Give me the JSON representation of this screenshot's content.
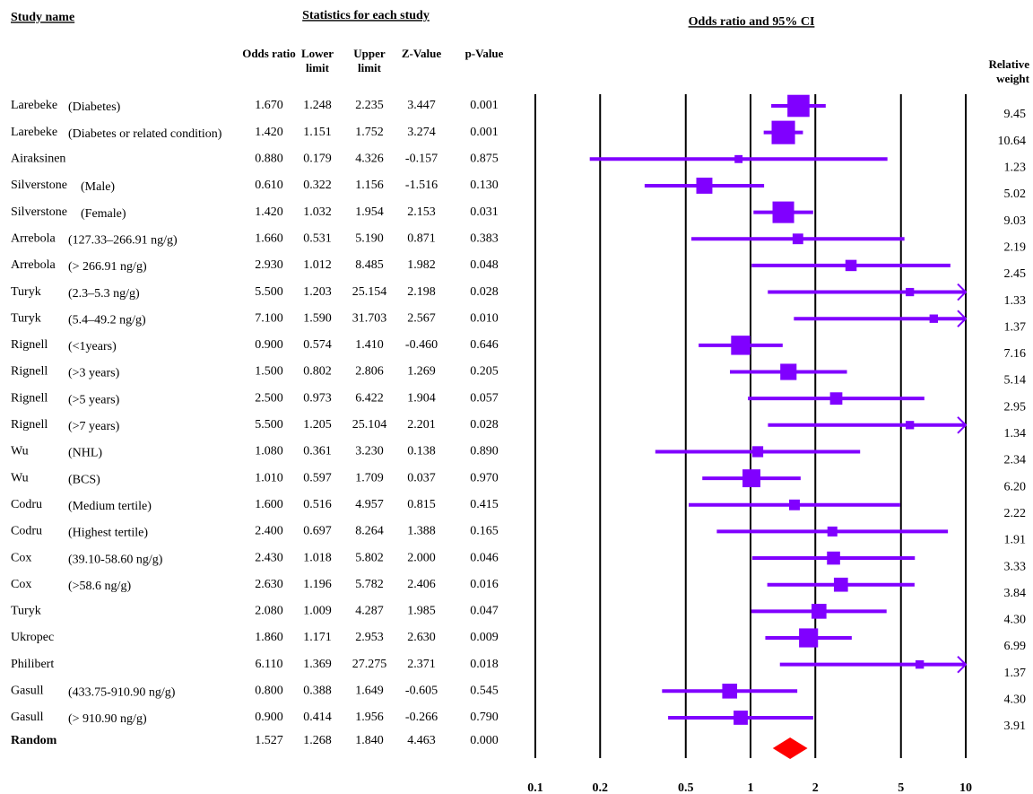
{
  "chart_data": {
    "type": "forest",
    "study_header": "Study name",
    "stats_header": "Statistics for each study",
    "title": "Odds ratio and 95% CI",
    "column_labels": [
      "Odds ratio",
      "Lower limit",
      "Upper limit",
      "Z-Value",
      "p-Value"
    ],
    "weight_header": "Relative weight",
    "xscale": "log",
    "xlim": [
      0.1,
      10
    ],
    "xticks": [
      0.1,
      0.2,
      0.5,
      1,
      2,
      5,
      10
    ],
    "color": "#8000ff",
    "summary_color": "#ff0000",
    "studies": [
      {
        "name": "Larebeke",
        "subgroup": "(Diabetes)",
        "odds_ratio": 1.67,
        "odds_ratio_label": "1.670",
        "lower": 1.248,
        "lower_label": "1.248",
        "upper": 2.235,
        "upper_label": "2.235",
        "z_value": "3.447",
        "p_value": "0.001",
        "weight": 9.45,
        "weight_label": "9.45"
      },
      {
        "name": "Larebeke",
        "subgroup": "(Diabetes or related condition)",
        "odds_ratio": 1.42,
        "odds_ratio_label": "1.420",
        "lower": 1.151,
        "lower_label": "1.151",
        "upper": 1.752,
        "upper_label": "1.752",
        "z_value": "3.274",
        "p_value": "0.001",
        "weight": 10.64,
        "weight_label": "10.64"
      },
      {
        "name": "Airaksinen",
        "odds_ratio": 0.88,
        "odds_ratio_label": "0.880",
        "lower": 0.179,
        "lower_label": "0.179",
        "upper": 4.326,
        "upper_label": "4.326",
        "z_value": "-0.157",
        "p_value": "0.875",
        "weight": 1.23,
        "weight_label": "1.23"
      },
      {
        "name": "Silverstone",
        "subgroup": "(Male)",
        "odds_ratio": 0.61,
        "odds_ratio_label": "0.610",
        "lower": 0.322,
        "lower_label": "0.322",
        "upper": 1.156,
        "upper_label": "1.156",
        "z_value": "-1.516",
        "p_value": "0.130",
        "weight": 5.02,
        "weight_label": "5.02"
      },
      {
        "name": "Silverstone",
        "subgroup": "(Female)",
        "odds_ratio": 1.42,
        "odds_ratio_label": "1.420",
        "lower": 1.032,
        "lower_label": "1.032",
        "upper": 1.954,
        "upper_label": "1.954",
        "z_value": "2.153",
        "p_value": "0.031",
        "weight": 9.03,
        "weight_label": "9.03"
      },
      {
        "name": "Arrebola",
        "subgroup": "(127.33–266.91 ng/g)",
        "odds_ratio": 1.66,
        "odds_ratio_label": "1.660",
        "lower": 0.531,
        "lower_label": "0.531",
        "upper": 5.19,
        "upper_label": "5.190",
        "z_value": "0.871",
        "p_value": "0.383",
        "weight": 2.19,
        "weight_label": "2.19"
      },
      {
        "name": "Arrebola",
        "subgroup": "(> 266.91 ng/g)",
        "odds_ratio": 2.93,
        "odds_ratio_label": "2.930",
        "lower": 1.012,
        "lower_label": "1.012",
        "upper": 8.485,
        "upper_label": "8.485",
        "z_value": "1.982",
        "p_value": "0.048",
        "weight": 2.45,
        "weight_label": "2.45"
      },
      {
        "name": "Turyk",
        "subgroup": "(2.3–5.3 ng/g)",
        "odds_ratio": 5.5,
        "odds_ratio_label": "5.500",
        "lower": 1.203,
        "lower_label": "1.203",
        "upper": 25.154,
        "upper_label": "25.154",
        "z_value": "2.198",
        "p_value": "0.028",
        "weight": 1.33,
        "weight_label": "1.33"
      },
      {
        "name": "Turyk",
        "subgroup": "(5.4–49.2 ng/g)",
        "odds_ratio": 7.1,
        "odds_ratio_label": "7.100",
        "lower": 1.59,
        "lower_label": "1.590",
        "upper": 31.703,
        "upper_label": "31.703",
        "z_value": "2.567",
        "p_value": "0.010",
        "weight": 1.37,
        "weight_label": "1.37"
      },
      {
        "name": "Rignell",
        "subgroup": "(<1years)",
        "odds_ratio": 0.9,
        "odds_ratio_label": "0.900",
        "lower": 0.574,
        "lower_label": "0.574",
        "upper": 1.41,
        "upper_label": "1.410",
        "z_value": "-0.460",
        "p_value": "0.646",
        "weight": 7.16,
        "weight_label": "7.16"
      },
      {
        "name": "Rignell",
        "subgroup": "(>3 years)",
        "odds_ratio": 1.5,
        "odds_ratio_label": "1.500",
        "lower": 0.802,
        "lower_label": "0.802",
        "upper": 2.806,
        "upper_label": "2.806",
        "z_value": "1.269",
        "p_value": "0.205",
        "weight": 5.14,
        "weight_label": "5.14"
      },
      {
        "name": "Rignell",
        "subgroup": "(>5 years)",
        "odds_ratio": 2.5,
        "odds_ratio_label": "2.500",
        "lower": 0.973,
        "lower_label": "0.973",
        "upper": 6.422,
        "upper_label": "6.422",
        "z_value": "1.904",
        "p_value": "0.057",
        "weight": 2.95,
        "weight_label": "2.95"
      },
      {
        "name": "Rignell",
        "subgroup": "(>7 years)",
        "odds_ratio": 5.5,
        "odds_ratio_label": "5.500",
        "lower": 1.205,
        "lower_label": "1.205",
        "upper": 25.104,
        "upper_label": "25.104",
        "z_value": "2.201",
        "p_value": "0.028",
        "weight": 1.34,
        "weight_label": "1.34"
      },
      {
        "name": "Wu",
        "subgroup": "(NHL)",
        "odds_ratio": 1.08,
        "odds_ratio_label": "1.080",
        "lower": 0.361,
        "lower_label": "0.361",
        "upper": 3.23,
        "upper_label": "3.230",
        "z_value": "0.138",
        "p_value": "0.890",
        "weight": 2.34,
        "weight_label": "2.34"
      },
      {
        "name": "Wu",
        "subgroup": "(BCS)",
        "odds_ratio": 1.01,
        "odds_ratio_label": "1.010",
        "lower": 0.597,
        "lower_label": "0.597",
        "upper": 1.709,
        "upper_label": "1.709",
        "z_value": "0.037",
        "p_value": "0.970",
        "weight": 6.2,
        "weight_label": "6.20"
      },
      {
        "name": "Codru",
        "subgroup": "(Medium tertile)",
        "odds_ratio": 1.6,
        "odds_ratio_label": "1.600",
        "lower": 0.516,
        "lower_label": "0.516",
        "upper": 4.957,
        "upper_label": "4.957",
        "z_value": "0.815",
        "p_value": "0.415",
        "weight": 2.22,
        "weight_label": "2.22"
      },
      {
        "name": "Codru",
        "subgroup": "(Highest tertile)",
        "odds_ratio": 2.4,
        "odds_ratio_label": "2.400",
        "lower": 0.697,
        "lower_label": "0.697",
        "upper": 8.264,
        "upper_label": "8.264",
        "z_value": "1.388",
        "p_value": "0.165",
        "weight": 1.91,
        "weight_label": "1.91"
      },
      {
        "name": "Cox",
        "subgroup": "(39.10-58.60 ng/g)",
        "odds_ratio": 2.43,
        "odds_ratio_label": "2.430",
        "lower": 1.018,
        "lower_label": "1.018",
        "upper": 5.802,
        "upper_label": "5.802",
        "z_value": "2.000",
        "p_value": "0.046",
        "weight": 3.33,
        "weight_label": "3.33"
      },
      {
        "name": "Cox",
        "subgroup": "(>58.6 ng/g)",
        "odds_ratio": 2.63,
        "odds_ratio_label": "2.630",
        "lower": 1.196,
        "lower_label": "1.196",
        "upper": 5.782,
        "upper_label": "5.782",
        "z_value": "2.406",
        "p_value": "0.016",
        "weight": 3.84,
        "weight_label": "3.84"
      },
      {
        "name": "Turyk",
        "odds_ratio": 2.08,
        "odds_ratio_label": "2.080",
        "lower": 1.009,
        "lower_label": "1.009",
        "upper": 4.287,
        "upper_label": "4.287",
        "z_value": "1.985",
        "p_value": "0.047",
        "weight": 4.3,
        "weight_label": "4.30"
      },
      {
        "name": "Ukropec",
        "odds_ratio": 1.86,
        "odds_ratio_label": "1.860",
        "lower": 1.171,
        "lower_label": "1.171",
        "upper": 2.953,
        "upper_label": "2.953",
        "z_value": "2.630",
        "p_value": "0.009",
        "weight": 6.99,
        "weight_label": "6.99"
      },
      {
        "name": "Philibert",
        "odds_ratio": 6.11,
        "odds_ratio_label": "6.110",
        "lower": 1.369,
        "lower_label": "1.369",
        "upper": 27.275,
        "upper_label": "27.275",
        "z_value": "2.371",
        "p_value": "0.018",
        "weight": 1.37,
        "weight_label": "1.37"
      },
      {
        "name": "Gasull",
        "subgroup": "(433.75-910.90 ng/g)",
        "odds_ratio": 0.8,
        "odds_ratio_label": "0.800",
        "lower": 0.388,
        "lower_label": "0.388",
        "upper": 1.649,
        "upper_label": "1.649",
        "z_value": "-0.605",
        "p_value": "0.545",
        "weight": 4.3,
        "weight_label": "4.30"
      },
      {
        "name": "Gasull",
        "subgroup": "(> 910.90 ng/g)",
        "odds_ratio": 0.9,
        "odds_ratio_label": "0.900",
        "lower": 0.414,
        "lower_label": "0.414",
        "upper": 1.956,
        "upper_label": "1.956",
        "z_value": "-0.266",
        "p_value": "0.790",
        "weight": 3.91,
        "weight_label": "3.91"
      }
    ],
    "summary": {
      "name": "Random",
      "odds_ratio": 1.527,
      "odds_ratio_label": "1.527",
      "lower": 1.268,
      "lower_label": "1.268",
      "upper": 1.84,
      "upper_label": "1.840",
      "z_value": "4.463",
      "p_value": "0.000"
    }
  }
}
